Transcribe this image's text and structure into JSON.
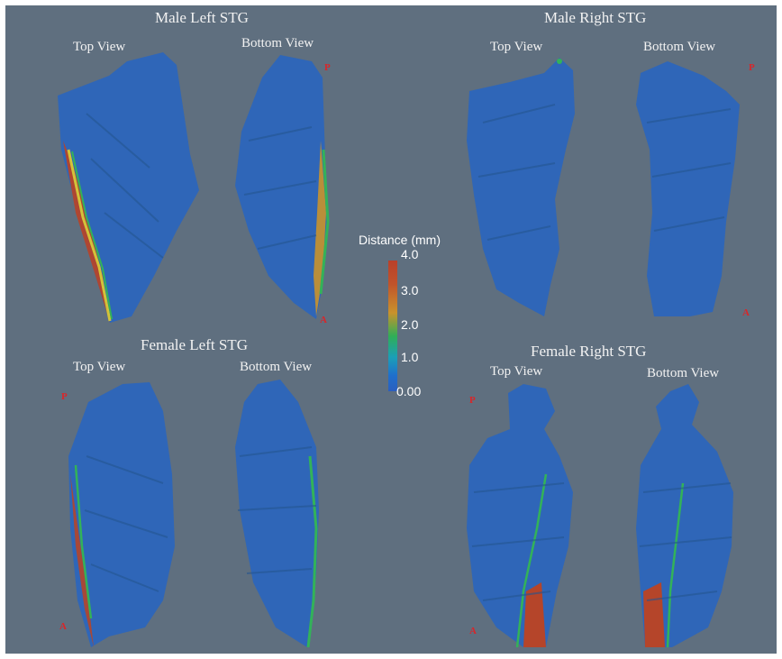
{
  "panels": {
    "male_left": {
      "title": "Male Left STG",
      "top_view": "Top View",
      "bottom_view": "Bottom View",
      "markers": [
        "P",
        "A"
      ]
    },
    "male_right": {
      "title": "Male Right STG",
      "top_view": "Top View",
      "bottom_view": "Bottom View",
      "markers": [
        "P",
        "A"
      ]
    },
    "female_left": {
      "title": "Female Left STG",
      "top_view": "Top View",
      "bottom_view": "Bottom View",
      "markers": [
        "P",
        "A"
      ]
    },
    "female_right": {
      "title": "Female Right STG",
      "top_view": "Top View",
      "bottom_view": "Bottom View",
      "markers": [
        "P",
        "A"
      ]
    }
  },
  "colorbar": {
    "title": "Distance (mm)",
    "ticks": [
      "4.0",
      "3.0",
      "2.0",
      "1.0",
      "0.00"
    ],
    "range": [
      0,
      4
    ],
    "colors": {
      "high": "#b9402a",
      "mid": "#2fae57",
      "low": "#2b5fbf"
    }
  },
  "colors": {
    "background": "#5f6f7f",
    "surface": "#2f66b8",
    "edge_high": "#b5452a"
  }
}
